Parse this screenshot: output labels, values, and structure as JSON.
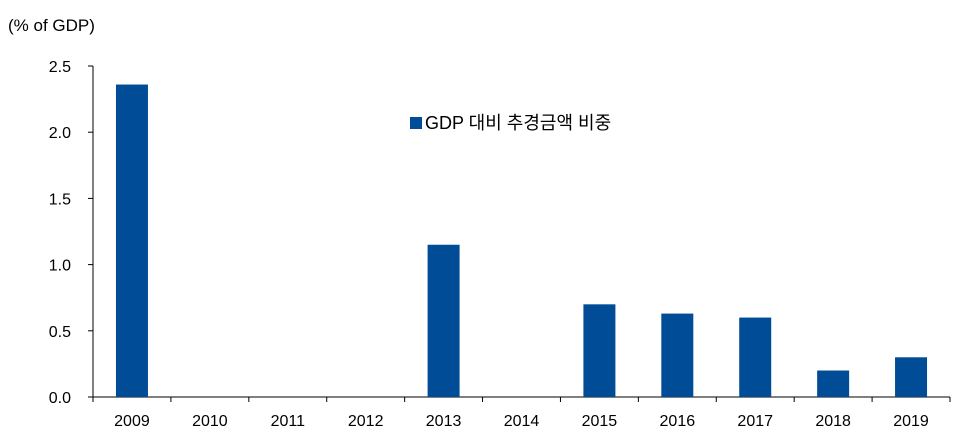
{
  "chart_data": {
    "type": "bar",
    "ylabel": "(% of GDP)",
    "categories": [
      "2009",
      "2010",
      "2011",
      "2012",
      "2013",
      "2014",
      "2015",
      "2016",
      "2017",
      "2018",
      "2019"
    ],
    "series": [
      {
        "name": "GDP 대비 추경금액 비중",
        "color": "#004C97",
        "values": [
          2.36,
          0,
          0,
          0,
          1.15,
          0,
          0.7,
          0.63,
          0.6,
          0.2,
          0.3
        ]
      }
    ],
    "ylim": [
      0,
      2.5
    ],
    "yticks": [
      "0.0",
      "0.5",
      "1.0",
      "1.5",
      "2.0",
      "2.5"
    ],
    "grid": false,
    "legend_position": "top-center"
  }
}
